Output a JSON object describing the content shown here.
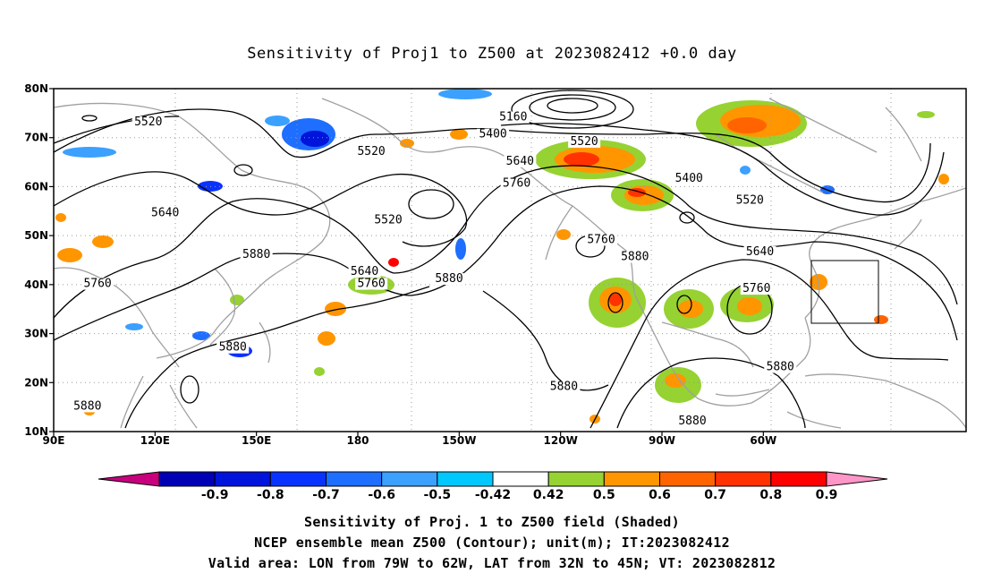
{
  "title": "Sensitivity of Proj1 to Z500 at 2023082412 +0.0 day",
  "lat_labels": [
    "80N",
    "70N",
    "60N",
    "50N",
    "40N",
    "30N",
    "20N",
    "10N"
  ],
  "lon_labels": [
    "90E",
    "120E",
    "150E",
    "180",
    "150W",
    "120W",
    "90W",
    "60W"
  ],
  "contour_labels": [
    {
      "text": "5520",
      "lon": 118,
      "lat": 72.5
    },
    {
      "text": "5520",
      "lon": -176,
      "lat": 66.5
    },
    {
      "text": "5520",
      "lon": -171,
      "lat": 52.5
    },
    {
      "text": "5160",
      "lon": -134,
      "lat": 73.5
    },
    {
      "text": "5400",
      "lon": -140,
      "lat": 70.0
    },
    {
      "text": "5520",
      "lon": -113,
      "lat": 68.5
    },
    {
      "text": "5640",
      "lon": -132,
      "lat": 64.5
    },
    {
      "text": "5760",
      "lon": -133,
      "lat": 60.0
    },
    {
      "text": "5400",
      "lon": -82,
      "lat": 61.0
    },
    {
      "text": "5520",
      "lon": -64,
      "lat": 56.5
    },
    {
      "text": "5640",
      "lon": -61,
      "lat": 46.0
    },
    {
      "text": "5760",
      "lon": -62,
      "lat": 38.5
    },
    {
      "text": "5760",
      "lon": -108,
      "lat": 48.5
    },
    {
      "text": "5880",
      "lon": -98,
      "lat": 45.0
    },
    {
      "text": "5640",
      "lon": 123,
      "lat": 54.0
    },
    {
      "text": "5880",
      "lon": 150,
      "lat": 45.5
    },
    {
      "text": "5760",
      "lon": 103,
      "lat": 39.5
    },
    {
      "text": "5640",
      "lon": -178,
      "lat": 42.0
    },
    {
      "text": "5760",
      "lon": -176,
      "lat": 39.5
    },
    {
      "text": "5880",
      "lon": -153,
      "lat": 40.5
    },
    {
      "text": "5880",
      "lon": 143,
      "lat": 26.5
    },
    {
      "text": "5880",
      "lon": -119,
      "lat": 18.5
    },
    {
      "text": "5880",
      "lon": -55,
      "lat": 22.5
    },
    {
      "text": "5880",
      "lon": 100,
      "lat": 14.5
    },
    {
      "text": "5880",
      "lon": -81,
      "lat": 11.5
    }
  ],
  "colorbar": {
    "labels": [
      "-0.9",
      "-0.8",
      "-0.7",
      "-0.6",
      "-0.5",
      "-0.42",
      "0.42",
      "0.5",
      "0.6",
      "0.7",
      "0.8",
      "0.9"
    ],
    "colors": [
      "#c8007d",
      "#0000b4",
      "#0014dc",
      "#0a32ff",
      "#1e6eff",
      "#3ca0ff",
      "#00c8ff",
      "#ffffff",
      "#96d232",
      "#ff9600",
      "#ff6400",
      "#ff3200",
      "#ff0000",
      "#ff96c8"
    ]
  },
  "captions": [
    "Sensitivity of Proj. 1 to Z500 field (Shaded)",
    "NCEP ensemble mean Z500 (Contour); unit(m); IT:2023082412",
    "Valid area: LON from 79W to 62W, LAT from 32N to 45N; VT: 2023082812"
  ],
  "valid_area": {
    "lon_min": -79,
    "lon_max": -62,
    "lat_min": 32,
    "lat_max": 45
  }
}
